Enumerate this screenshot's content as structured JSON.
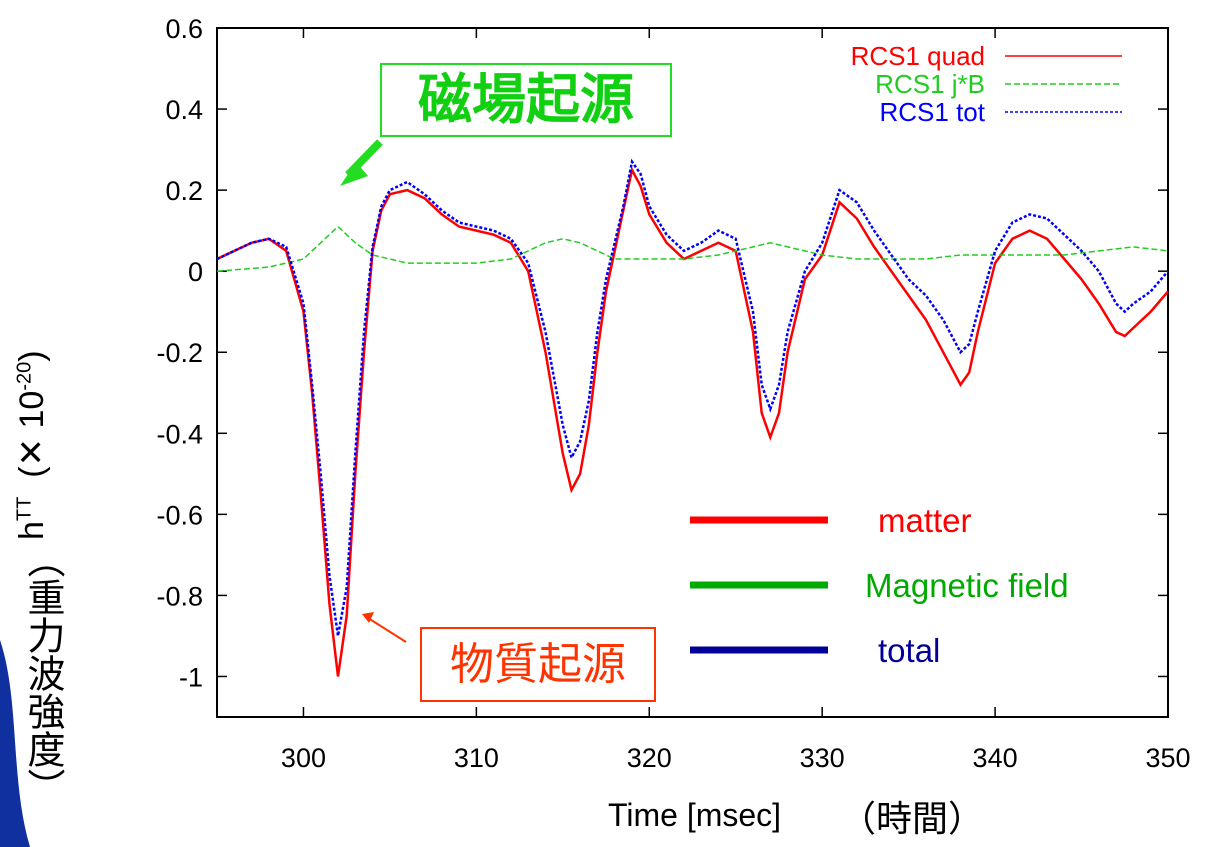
{
  "chart_data": {
    "type": "line",
    "xlabel": "Time [msec]",
    "xlabel_jp": "（時間）",
    "ylabel_main": "h",
    "ylabel_sup": "TT",
    "ylabel_unit": "(✕ 10",
    "ylabel_exp": "-20",
    "ylabel_close": ")",
    "ylabel_jp": "（重力波強度）",
    "xlim": [
      295,
      350
    ],
    "ylim": [
      -1.1,
      0.6
    ],
    "xticks": [
      "300",
      "310",
      "320",
      "330",
      "340",
      "350"
    ],
    "xtick_values": [
      300,
      310,
      320,
      330,
      340,
      350
    ],
    "yticks": [
      "0.6",
      "0.4",
      "0.2",
      "0",
      "-0.2",
      "-0.4",
      "-0.6",
      "-0.8",
      "-1"
    ],
    "ytick_values": [
      0.6,
      0.4,
      0.2,
      0,
      -0.2,
      -0.4,
      -0.6,
      -0.8,
      -1
    ],
    "series": [
      {
        "name": "RCS1 quad",
        "color": "#ff0000",
        "dash": "solid",
        "x": [
          295,
          296,
          297,
          298,
          299,
          300,
          300.5,
          301,
          301.5,
          302,
          302.5,
          303,
          303.5,
          304,
          304.5,
          305,
          306,
          307,
          308,
          309,
          310,
          311,
          312,
          313,
          314,
          315,
          315.5,
          316,
          316.5,
          317,
          317.5,
          318,
          318.5,
          319,
          319.5,
          320,
          321,
          322,
          323,
          324,
          325,
          326,
          326.5,
          327,
          327.5,
          328,
          329,
          330,
          331,
          332,
          333,
          334,
          335,
          336,
          337,
          338,
          338.5,
          339,
          340,
          341,
          342,
          343,
          344,
          345,
          346,
          347,
          347.5,
          348,
          349,
          350
        ],
        "y": [
          0.03,
          0.05,
          0.07,
          0.08,
          0.05,
          -0.1,
          -0.3,
          -0.55,
          -0.82,
          -1.0,
          -0.85,
          -0.5,
          -0.2,
          0.05,
          0.15,
          0.19,
          0.2,
          0.18,
          0.14,
          0.11,
          0.1,
          0.09,
          0.07,
          0.0,
          -0.2,
          -0.45,
          -0.54,
          -0.5,
          -0.38,
          -0.2,
          -0.05,
          0.05,
          0.15,
          0.25,
          0.21,
          0.14,
          0.07,
          0.03,
          0.05,
          0.07,
          0.05,
          -0.15,
          -0.35,
          -0.41,
          -0.35,
          -0.2,
          -0.02,
          0.04,
          0.17,
          0.13,
          0.06,
          0.0,
          -0.06,
          -0.12,
          -0.2,
          -0.28,
          -0.25,
          -0.15,
          0.02,
          0.08,
          0.1,
          0.08,
          0.03,
          -0.02,
          -0.08,
          -0.15,
          -0.16,
          -0.14,
          -0.1,
          -0.05
        ]
      },
      {
        "name": "RCS1 j*B",
        "color": "#22cc22",
        "dash": "dashed",
        "x": [
          295,
          298,
          300,
          301,
          302,
          303,
          304,
          305,
          306,
          308,
          310,
          312,
          313,
          314,
          315,
          316,
          317,
          318,
          320,
          322,
          324,
          326,
          327,
          328,
          330,
          332,
          334,
          336,
          338,
          340,
          342,
          344,
          346,
          348,
          350
        ],
        "y": [
          0.0,
          0.01,
          0.03,
          0.07,
          0.11,
          0.07,
          0.04,
          0.03,
          0.02,
          0.02,
          0.02,
          0.03,
          0.05,
          0.07,
          0.08,
          0.07,
          0.05,
          0.03,
          0.03,
          0.03,
          0.04,
          0.06,
          0.07,
          0.06,
          0.04,
          0.03,
          0.03,
          0.03,
          0.04,
          0.04,
          0.04,
          0.04,
          0.05,
          0.06,
          0.05
        ]
      },
      {
        "name": "RCS1 tot",
        "color": "#0000ff",
        "dash": "dotted",
        "x": [
          295,
          296,
          297,
          298,
          299,
          300,
          300.5,
          301,
          301.5,
          302,
          302.5,
          303,
          303.5,
          304,
          304.5,
          305,
          306,
          307,
          308,
          309,
          310,
          311,
          312,
          313,
          314,
          315,
          315.5,
          316,
          316.5,
          317,
          317.5,
          318,
          318.5,
          319,
          319.5,
          320,
          321,
          322,
          323,
          324,
          325,
          326,
          326.5,
          327,
          327.5,
          328,
          329,
          330,
          331,
          332,
          333,
          334,
          335,
          336,
          337,
          338,
          338.5,
          339,
          340,
          341,
          342,
          343,
          344,
          345,
          346,
          347,
          347.5,
          348,
          349,
          350
        ],
        "y": [
          0.03,
          0.05,
          0.07,
          0.08,
          0.06,
          -0.08,
          -0.28,
          -0.5,
          -0.75,
          -0.9,
          -0.78,
          -0.45,
          -0.15,
          0.06,
          0.16,
          0.2,
          0.22,
          0.19,
          0.15,
          0.12,
          0.11,
          0.1,
          0.08,
          0.02,
          -0.15,
          -0.38,
          -0.46,
          -0.42,
          -0.32,
          -0.15,
          -0.02,
          0.07,
          0.16,
          0.27,
          0.24,
          0.16,
          0.09,
          0.05,
          0.07,
          0.1,
          0.08,
          -0.1,
          -0.28,
          -0.34,
          -0.28,
          -0.15,
          0.0,
          0.07,
          0.2,
          0.17,
          0.1,
          0.04,
          -0.02,
          -0.06,
          -0.12,
          -0.2,
          -0.18,
          -0.1,
          0.05,
          0.12,
          0.14,
          0.13,
          0.09,
          0.05,
          0.0,
          -0.08,
          -0.1,
          -0.08,
          -0.05,
          0.0
        ]
      }
    ],
    "legend": {
      "placement": "top-right",
      "entries": [
        {
          "label": "RCS1 quad",
          "color": "#ff0000",
          "dash": "solid"
        },
        {
          "label": "RCS1 j*B",
          "color": "#22cc22",
          "dash": "dashed"
        },
        {
          "label": "RCS1 tot",
          "color": "#0000ff",
          "dash": "dotted"
        }
      ]
    },
    "legend2": {
      "placement": "bottom-right",
      "entries": [
        {
          "label": "matter",
          "color": "#ff0000"
        },
        {
          "label": "Magnetic field",
          "color": "#00aa00"
        },
        {
          "label": "total",
          "color": "#000099"
        }
      ]
    },
    "annotations": {
      "magnetic_origin": "磁場起源",
      "matter_origin": "物質起源"
    }
  }
}
